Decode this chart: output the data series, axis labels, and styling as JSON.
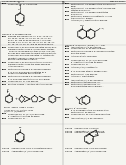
{
  "bg_color": "#f5f5f0",
  "text_color": "#000000",
  "header_left": "US 20130287748 A1",
  "header_right": "May 23, 2013",
  "page_num": "19",
  "fig_width": 1.28,
  "fig_height": 1.65,
  "dpi": 100
}
